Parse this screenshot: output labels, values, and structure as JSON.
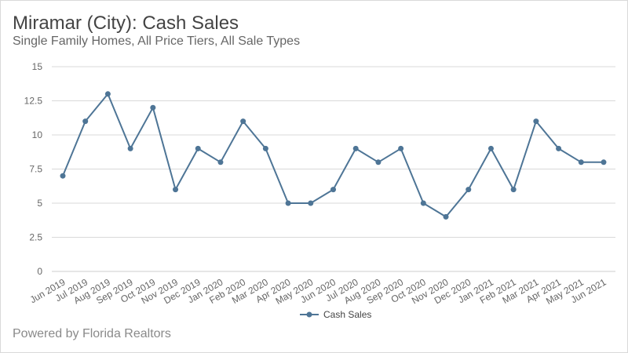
{
  "title": "Miramar (City): Cash Sales",
  "subtitle": "Single Family Homes, All Price Tiers, All Sale Types",
  "footer": "Powered by Florida Realtors",
  "colors": {
    "line": "#4e7596",
    "grid": "#d9d9d9",
    "axis": "#cccccc"
  },
  "chart_data": {
    "type": "line",
    "title": "Miramar (City): Cash Sales",
    "subtitle": "Single Family Homes, All Price Tiers, All Sale Types",
    "categories": [
      "Jun 2019",
      "Jul 2019",
      "Aug 2019",
      "Sep 2019",
      "Oct 2019",
      "Nov 2019",
      "Dec 2019",
      "Jan 2020",
      "Feb 2020",
      "Mar 2020",
      "Apr 2020",
      "May 2020",
      "Jun 2020",
      "Jul 2020",
      "Aug 2020",
      "Sep 2020",
      "Oct 2020",
      "Nov 2020",
      "Dec 2020",
      "Jan 2021",
      "Feb 2021",
      "Mar 2021",
      "Apr 2021",
      "May 2021",
      "Jun 2021"
    ],
    "series": [
      {
        "name": "Cash Sales",
        "values": [
          7,
          11,
          13,
          9,
          12,
          6,
          9,
          8,
          11,
          9,
          5,
          5,
          6,
          9,
          8,
          9,
          5,
          4,
          6,
          9,
          6,
          11,
          9,
          8,
          8
        ]
      }
    ],
    "yticks": [
      "0",
      "2.5",
      "5",
      "7.5",
      "10",
      "12.5",
      "15"
    ],
    "ylim": [
      0,
      15
    ],
    "xlabel": "",
    "ylabel": "",
    "grid": true,
    "legend": "bottom-center"
  }
}
